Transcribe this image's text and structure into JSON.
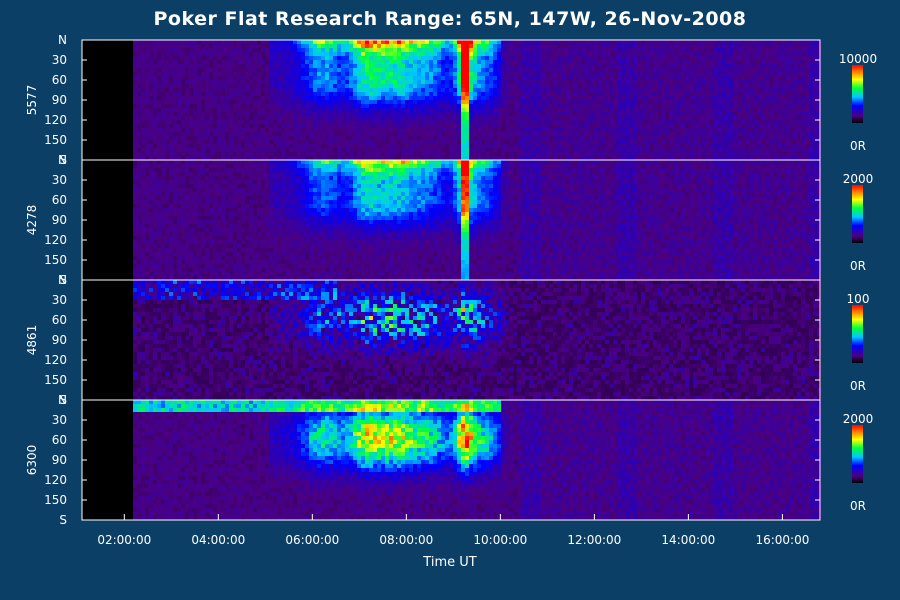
{
  "chart_data": {
    "type": "heatmap",
    "title": "Poker Flat Research Range: 65N, 147W, 26-Nov-2008",
    "xlabel": "Time UT",
    "x_ticks": [
      "02:00:00",
      "04:00:00",
      "06:00:00",
      "08:00:00",
      "10:00:00",
      "12:00:00",
      "14:00:00",
      "16:00:00"
    ],
    "x_tick_hours": [
      2,
      4,
      6,
      8,
      10,
      12,
      14,
      16
    ],
    "x_range_hours": [
      1.1,
      16.8
    ],
    "y_ticks": [
      "N",
      "30",
      "60",
      "90",
      "120",
      "150",
      "S"
    ],
    "y_tick_values": [
      0,
      30,
      60,
      90,
      120,
      150,
      180
    ],
    "y_range": [
      0,
      180
    ],
    "panels": [
      {
        "label": "5577",
        "scale_max": "10000",
        "scale_min": "0R",
        "peak": 1.0,
        "profile": "red"
      },
      {
        "label": "4278",
        "scale_max": "2000",
        "scale_min": "0R",
        "peak": 0.85,
        "profile": "blue"
      },
      {
        "label": "4861",
        "scale_max": "100",
        "scale_min": "0R",
        "peak": 0.6,
        "profile": "hbeta"
      },
      {
        "label": "6300",
        "scale_max": "2000",
        "scale_min": "0R",
        "peak": 0.75,
        "profile": "oi"
      }
    ]
  }
}
